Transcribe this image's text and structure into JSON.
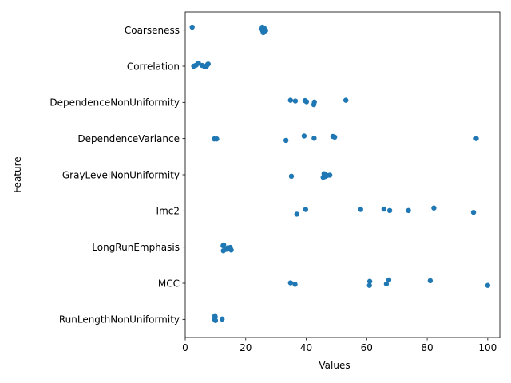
{
  "chart_data": {
    "type": "scatter",
    "subtype": "strip",
    "title": "",
    "xlabel": "Values",
    "ylabel": "Feature",
    "xlim": [
      0,
      104
    ],
    "xticks": [
      0,
      20,
      40,
      60,
      80,
      100
    ],
    "grid": false,
    "legend": "none",
    "color": "#1f77b4",
    "categories": [
      "Coarseness",
      "Correlation",
      "DependenceNonUniformity",
      "DependenceVariance",
      "GrayLevelNonUniformity",
      "Imc2",
      "LongRunEmphasis",
      "MCC",
      "RunLengthNonUniformity"
    ],
    "points": [
      [
        [
          25.6,
          0.02
        ],
        [
          26.1,
          -0.05
        ],
        [
          25.8,
          0.07
        ],
        [
          26.6,
          0.01
        ],
        [
          25.3,
          -0.03
        ],
        [
          26.0,
          0.06
        ],
        [
          25.5,
          -0.08
        ],
        [
          2.3,
          -0.08
        ]
      ],
      [
        [
          2.8,
          0.0
        ],
        [
          3.6,
          -0.03
        ],
        [
          4.4,
          -0.08
        ],
        [
          5.6,
          -0.02
        ],
        [
          6.4,
          0.01
        ],
        [
          7.1,
          -0.01
        ],
        [
          7.4,
          -0.05
        ],
        [
          7.6,
          -0.06
        ],
        [
          6.9,
          0.02
        ]
      ],
      [
        [
          34.8,
          -0.06
        ],
        [
          36.4,
          -0.04
        ],
        [
          39.6,
          -0.05
        ],
        [
          40.1,
          -0.02
        ],
        [
          42.5,
          0.06
        ],
        [
          42.7,
          -0.01
        ],
        [
          53.1,
          -0.06
        ]
      ],
      [
        [
          9.6,
          0.01
        ],
        [
          10.4,
          0.01
        ],
        [
          33.3,
          0.05
        ],
        [
          39.3,
          -0.07
        ],
        [
          42.6,
          -0.01
        ],
        [
          48.8,
          -0.06
        ],
        [
          49.4,
          -0.04
        ],
        [
          96.2,
          0.0
        ]
      ],
      [
        [
          35.1,
          0.04
        ],
        [
          45.6,
          0.07
        ],
        [
          46.2,
          0.05
        ],
        [
          45.9,
          -0.03
        ],
        [
          46.9,
          0.02
        ],
        [
          47.8,
          0.01
        ],
        [
          46.2,
          -0.01
        ]
      ],
      [
        [
          36.9,
          0.09
        ],
        [
          39.8,
          -0.04
        ],
        [
          58.0,
          -0.04
        ],
        [
          65.7,
          -0.05
        ],
        [
          67.6,
          -0.01
        ],
        [
          73.8,
          -0.01
        ],
        [
          82.2,
          -0.08
        ],
        [
          95.3,
          0.04
        ]
      ],
      [
        [
          12.6,
          0.1
        ],
        [
          12.5,
          -0.04
        ],
        [
          12.7,
          -0.06
        ],
        [
          13.6,
          0.06
        ],
        [
          14.4,
          0.03
        ],
        [
          15.2,
          0.08
        ],
        [
          14.9,
          0.01
        ],
        [
          14.1,
          0.02
        ]
      ],
      [
        [
          34.8,
          -0.01
        ],
        [
          36.3,
          0.03
        ],
        [
          60.9,
          0.06
        ],
        [
          61.0,
          -0.05
        ],
        [
          66.5,
          0.02
        ],
        [
          67.3,
          -0.09
        ],
        [
          81.0,
          -0.07
        ],
        [
          100.0,
          0.06
        ]
      ],
      [
        [
          9.6,
          -0.01
        ],
        [
          9.9,
          -0.07
        ],
        [
          10.0,
          0.03
        ],
        [
          9.8,
          -0.1
        ],
        [
          12.2,
          -0.01
        ]
      ]
    ]
  }
}
